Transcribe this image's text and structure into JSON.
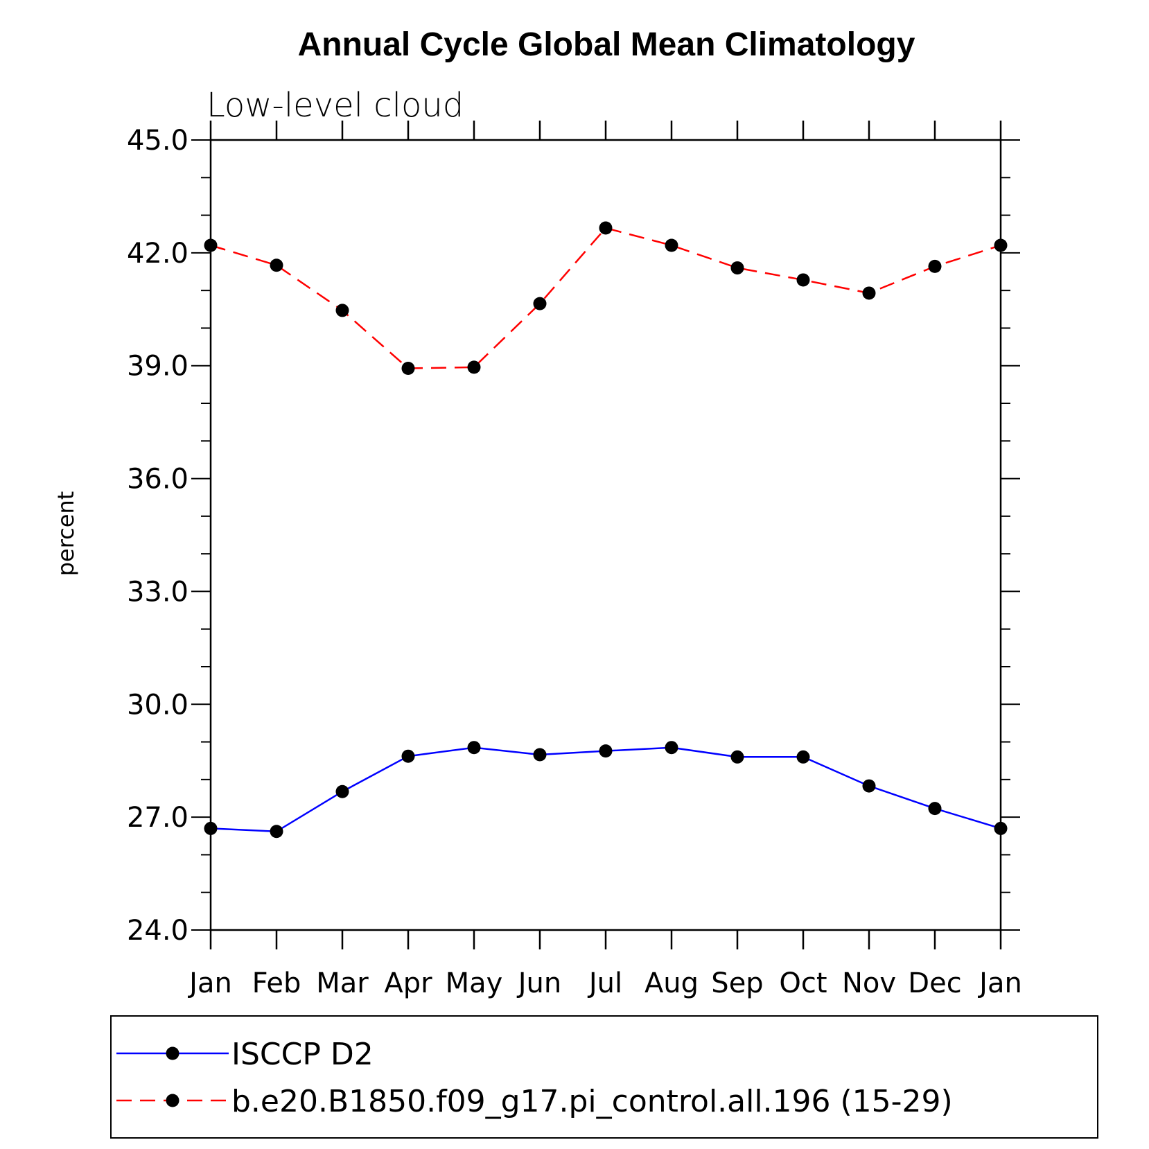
{
  "chart_data": {
    "type": "line",
    "title": "Annual Cycle Global Mean Climatology",
    "subtitle": "Low-level cloud",
    "xlabel": "",
    "ylabel": "percent",
    "categories": [
      "Jan",
      "Feb",
      "Mar",
      "Apr",
      "May",
      "Jun",
      "Jul",
      "Aug",
      "Sep",
      "Oct",
      "Nov",
      "Dec",
      "Jan"
    ],
    "ylim": [
      24.0,
      45.0
    ],
    "yticks": [
      "24.0",
      "27.0",
      "30.0",
      "33.0",
      "36.0",
      "39.0",
      "42.0",
      "45.0"
    ],
    "grid": false,
    "legend_position": "bottom",
    "series": [
      {
        "name": "ISCCP D2",
        "color": "#0000ff",
        "style": "solid",
        "marker": "filled-circle",
        "values": [
          26.7,
          26.62,
          27.68,
          28.62,
          28.85,
          28.66,
          28.76,
          28.85,
          28.6,
          28.6,
          27.83,
          27.23,
          26.7
        ]
      },
      {
        "name": "b.e20.B1850.f09_g17.pi_control.all.196 (15-29)",
        "color": "#ff0000",
        "style": "dashed",
        "marker": "filled-circle",
        "values": [
          42.2,
          41.67,
          40.47,
          38.93,
          38.96,
          40.65,
          42.66,
          42.2,
          41.6,
          41.28,
          40.93,
          41.64,
          42.2
        ]
      }
    ]
  }
}
